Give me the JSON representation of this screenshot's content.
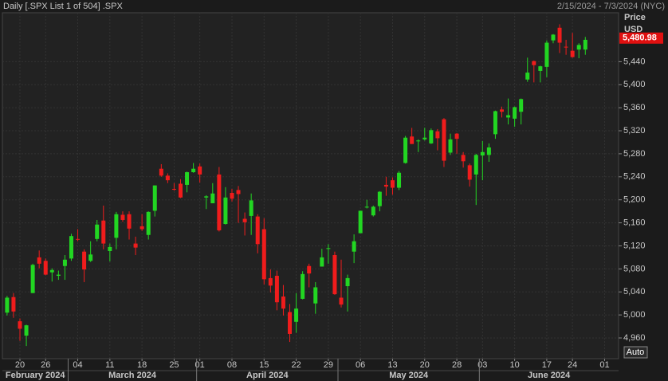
{
  "header": {
    "title": "Daily [.SPX List 1 of 504] .SPX",
    "range": "2/15/2024 - 7/3/2024 (NYC)"
  },
  "chart_data": {
    "type": "candlestick",
    "axis_title": "Price",
    "axis_unit": "USD",
    "scale_button": "Auto",
    "categories": [
      null,
      null,
      "20",
      null,
      null,
      null,
      "26",
      null,
      null,
      null,
      null,
      "04",
      null,
      null,
      null,
      null,
      "11",
      null,
      null,
      null,
      null,
      "18",
      null,
      null,
      null,
      null,
      "25",
      null,
      null,
      null,
      "01",
      null,
      null,
      null,
      null,
      "08",
      null,
      null,
      null,
      null,
      "15",
      null,
      null,
      null,
      null,
      "22",
      null,
      null,
      null,
      null,
      "29",
      null,
      null,
      null,
      null,
      "06",
      null,
      null,
      null,
      null,
      "13",
      null,
      null,
      null,
      null,
      "20",
      null,
      null,
      null,
      null,
      "28",
      null,
      null,
      null,
      "03",
      null,
      null,
      null,
      null,
      "10",
      null,
      null,
      null,
      null,
      "17",
      null,
      null,
      null,
      "24",
      null,
      null,
      null,
      null,
      "01",
      null,
      null
    ],
    "months": [
      "February 2024",
      null,
      null,
      null,
      null,
      null,
      null,
      null,
      null,
      null,
      "March 2024",
      null,
      null,
      null,
      null,
      null,
      null,
      null,
      null,
      null,
      null,
      null,
      null,
      null,
      null,
      null,
      null,
      null,
      null,
      null,
      "April 2024",
      null,
      null,
      null,
      null,
      null,
      null,
      null,
      null,
      null,
      null,
      null,
      null,
      null,
      null,
      null,
      null,
      null,
      null,
      null,
      null,
      null,
      "May 2024",
      null,
      null,
      null,
      null,
      null,
      null,
      null,
      null,
      null,
      null,
      null,
      null,
      null,
      null,
      null,
      null,
      null,
      null,
      null,
      null,
      null,
      "June 2024",
      null,
      null,
      null,
      null,
      null,
      null,
      null,
      null,
      null,
      null,
      null,
      null,
      null,
      null,
      null,
      null,
      null,
      null,
      null,
      null,
      null
    ],
    "series": [
      {
        "name": ".SPX",
        "up_color": "#22d622",
        "down_color": "#f01c1c",
        "open": [
          5004,
          5031,
          4989,
          4964,
          5038,
          5100,
          5094,
          5074,
          5068,
          5085,
          5098,
          5132,
          5110,
          5094,
          5132,
          5164,
          5111,
          5134,
          5174,
          5175,
          5124,
          5154,
          5139,
          5181,
          5254,
          5242,
          5219,
          5228,
          5226,
          5248,
          5258,
          5204,
          5194,
          5244,
          5158,
          5212,
          5217,
          5167,
          5172,
          5171,
          5149,
          5064,
          5068,
          5032,
          5005,
          4988,
          5028,
          5085,
          5020,
          5084,
          5115,
          5104,
          5030,
          5050,
          5110,
          5142,
          5187,
          5173,
          5189,
          5226,
          5234,
          5221,
          5264,
          5310,
          5302,
          5305,
          5298,
          5319,
          5340,
          5282,
          5315,
          5278,
          5260,
          5244,
          5277,
          5278,
          5314,
          5357,
          5343,
          5341,
          5353,
          5409,
          5441,
          5424,
          5431,
          5477,
          5499,
          5466,
          5459,
          5461,
          5461,
          null,
          null,
          null,
          null,
          null
        ],
        "high": [
          5033,
          5038,
          4994,
          4983,
          5089,
          5112,
          5098,
          5081,
          5077,
          5104,
          5141,
          5149,
          5114,
          5128,
          5165,
          5190,
          5124,
          5179,
          5180,
          5180,
          5136,
          5175,
          5180,
          5225,
          5262,
          5246,
          5229,
          5236,
          5249,
          5264,
          5263,
          5208,
          5229,
          5257,
          5222,
          5219,
          5224,
          5178,
          5211,
          5175,
          5168,
          5079,
          5077,
          5052,
          5019,
          5038,
          5076,
          5089,
          5057,
          5115,
          5123,
          5110,
          5096,
          5070,
          5140,
          5181,
          5200,
          5190,
          5215,
          5240,
          5239,
          5250,
          5311,
          5325,
          5305,
          5325,
          5324,
          5323,
          5342,
          5315,
          5316,
          5283,
          5263,
          5280,
          5302,
          5298,
          5355,
          5362,
          5376,
          5362,
          5376,
          5447,
          5442,
          5433,
          5477,
          5488,
          5505,
          5478,
          5490,
          5472,
          5483,
          null,
          null,
          null,
          null,
          null
        ],
        "low": [
          4999,
          4995,
          4955,
          4946,
          5038,
          5081,
          5069,
          5058,
          5061,
          5061,
          5094,
          5128,
          5057,
          5092,
          5128,
          5114,
          5093,
          5114,
          5162,
          5131,
          5104,
          5146,
          5131,
          5171,
          5240,
          5229,
          5216,
          5203,
          5213,
          5247,
          5230,
          5184,
          5194,
          5145,
          5157,
          5197,
          5160,
          5138,
          5139,
          5107,
          5053,
          5039,
          5008,
          4999,
          4953,
          4969,
          5027,
          5048,
          5002,
          5084,
          5089,
          5035,
          5013,
          5006,
          5090,
          5142,
          5185,
          5171,
          5180,
          5207,
          5209,
          5217,
          5263,
          5297,
          5283,
          5303,
          5297,
          5286,
          5257,
          5278,
          5280,
          5256,
          5223,
          5191,
          5234,
          5266,
          5306,
          5343,
          5331,
          5327,
          5331,
          5405,
          5404,
          5404,
          5413,
          5472,
          5455,
          5452,
          5447,
          5446,
          5452,
          null,
          null,
          null,
          null,
          null
        ],
        "close": [
          5030,
          5006,
          4976,
          4982,
          5087,
          5089,
          5070,
          5078,
          5070,
          5096,
          5137,
          5131,
          5079,
          5105,
          5157,
          5124,
          5118,
          5175,
          5165,
          5150,
          5117,
          5149,
          5179,
          5225,
          5242,
          5234,
          5218,
          5204,
          5248,
          5254,
          5244,
          5206,
          5211,
          5147,
          5204,
          5202,
          5210,
          5161,
          5199,
          5123,
          5062,
          5051,
          5022,
          5011,
          4967,
          5011,
          5071,
          5072,
          5048,
          5100,
          5116,
          5036,
          5018,
          5064,
          5128,
          5181,
          5188,
          5188,
          5214,
          5223,
          5221,
          5247,
          5308,
          5297,
          5303,
          5308,
          5321,
          5307,
          5268,
          5305,
          5306,
          5267,
          5235,
          5278,
          5283,
          5291,
          5354,
          5353,
          5347,
          5361,
          5375,
          5421,
          5434,
          5432,
          5473,
          5487,
          5473,
          5465,
          5448,
          5469,
          5478,
          null,
          null,
          null,
          null,
          null
        ]
      }
    ],
    "last_price": {
      "value": 5480.98,
      "label": "5,480.98"
    },
    "ylim": [
      4924,
      5525
    ],
    "yticks": [
      {
        "value": 4960,
        "label": "4,960"
      },
      {
        "value": 5000,
        "label": "5,000"
      },
      {
        "value": 5040,
        "label": "5,040"
      },
      {
        "value": 5080,
        "label": "5,080"
      },
      {
        "value": 5120,
        "label": "5,120"
      },
      {
        "value": 5160,
        "label": "5,160"
      },
      {
        "value": 5200,
        "label": "5,200"
      },
      {
        "value": 5240,
        "label": "5,240"
      },
      {
        "value": 5280,
        "label": "5,280"
      },
      {
        "value": 5320,
        "label": "5,320"
      },
      {
        "value": 5360,
        "label": "5,360"
      },
      {
        "value": 5400,
        "label": "5,400"
      },
      {
        "value": 5440,
        "label": "5,440"
      }
    ],
    "grid": true
  }
}
